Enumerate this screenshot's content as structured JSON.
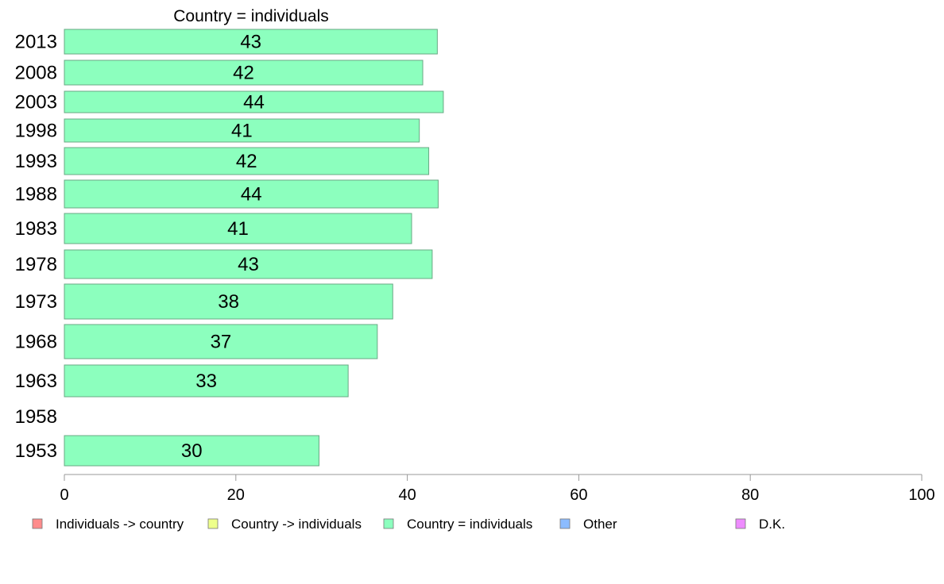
{
  "chart_data": {
    "type": "bar",
    "orientation": "horizontal",
    "title": "Country = individuals",
    "xlabel": "",
    "ylabel": "",
    "xlim": [
      0,
      100
    ],
    "x_ticks": [
      0,
      20,
      40,
      60,
      80,
      100
    ],
    "grid": false,
    "categories": [
      "2013",
      "2008",
      "2003",
      "1998",
      "1993",
      "1988",
      "1983",
      "1978",
      "1973",
      "1968",
      "1963",
      "1958",
      "1953"
    ],
    "values": [
      43.5,
      41.8,
      44.2,
      41.4,
      42.5,
      43.6,
      40.5,
      42.9,
      38.3,
      36.5,
      33.1,
      null,
      29.7
    ],
    "value_labels": [
      "43",
      "42",
      "44",
      "41",
      "42",
      "44",
      "41",
      "43",
      "38",
      "37",
      "33",
      "",
      "30"
    ],
    "legend": {
      "placement": "bottom",
      "entries": [
        {
          "label": "Individuals -> country",
          "color": "#ff8c8c"
        },
        {
          "label": "Country -> individuals",
          "color": "#eeff8c"
        },
        {
          "label": "Country = individuals",
          "color": "#8cffbe"
        },
        {
          "label": "Other",
          "color": "#8cbcff"
        },
        {
          "label": "D.K.",
          "color": "#ee8cff"
        }
      ]
    },
    "bar_color": "#8cffbe",
    "bar_edge_color": "#6aa884"
  }
}
